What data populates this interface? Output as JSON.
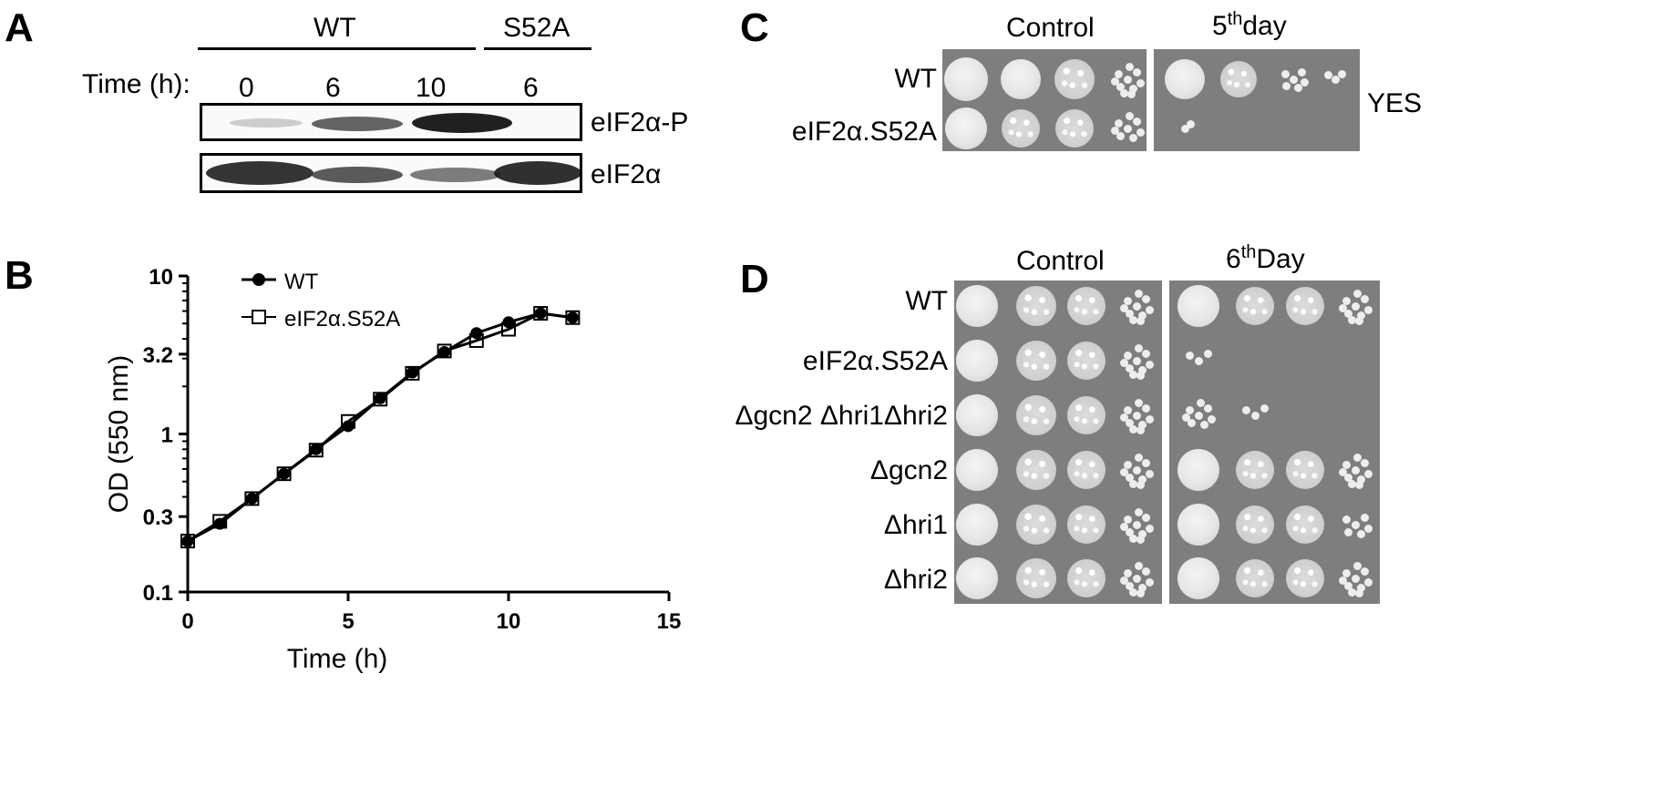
{
  "panels": {
    "A": {
      "letter": "A",
      "wt_label": "WT",
      "mut_label": "S52A",
      "time_label": "Time (h):",
      "times": [
        "0",
        "6",
        "10",
        "6"
      ],
      "blot_labels": [
        "eIF2α-P",
        "eIF2α"
      ]
    },
    "B": {
      "letter": "B",
      "xlabel": "Time (h)",
      "ylabel": "OD (550 nm)",
      "xticks": [
        "0",
        "5",
        "10",
        "15"
      ],
      "yticks": [
        "10",
        "3.2",
        "1",
        "0.3",
        "0.1"
      ],
      "legend": [
        "WT",
        "eIF2α.S52A"
      ]
    },
    "C": {
      "letter": "C",
      "col_control": "Control",
      "col_day_num": "5",
      "col_day_sup": "th",
      "col_day_word": "day",
      "rows": [
        "WT",
        "eIF2α.S52A"
      ],
      "medium": "YES"
    },
    "D": {
      "letter": "D",
      "col_control": "Control",
      "col_day_num": "6",
      "col_day_sup": "th",
      "col_day_word": "Day",
      "rows": [
        "WT",
        "eIF2α.S52A",
        "Δgcn2 Δhri1Δhri2",
        "Δgcn2",
        "Δhri1",
        "Δhri2"
      ]
    }
  },
  "chart_data": {
    "type": "line",
    "xlabel": "Time (h)",
    "ylabel": "OD (550 nm)",
    "xlim": [
      0,
      15
    ],
    "ylim": [
      0.1,
      10
    ],
    "yscale": "log",
    "grid": false,
    "legend_position": "top-left",
    "series": [
      {
        "name": "WT",
        "marker": "filled-circle",
        "x": [
          0,
          1,
          2,
          3,
          4,
          5,
          6,
          7,
          8,
          9,
          10,
          11,
          12
        ],
        "y": [
          0.21,
          0.27,
          0.39,
          0.56,
          0.8,
          1.12,
          1.68,
          2.45,
          3.3,
          4.35,
          5.1,
          5.8,
          5.45
        ]
      },
      {
        "name": "eIF2α.S52A",
        "marker": "open-square",
        "x": [
          0,
          1,
          2,
          3,
          4,
          5,
          6,
          7,
          8,
          9,
          10,
          11,
          12
        ],
        "y": [
          0.21,
          0.28,
          0.39,
          0.56,
          0.79,
          1.2,
          1.66,
          2.42,
          3.35,
          3.9,
          4.6,
          5.8,
          5.45
        ]
      }
    ]
  }
}
